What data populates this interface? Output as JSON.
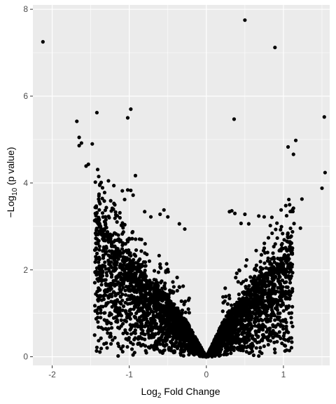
{
  "chart_data": {
    "type": "scatter",
    "title": "",
    "xlabel": {
      "prefix": "Log",
      "sub": "2",
      "suffix": " Fold Change"
    },
    "ylabel": {
      "prefix": "−Log",
      "sub": "10",
      "suffix": " (p value)"
    },
    "xlim": [
      -2.25,
      1.6
    ],
    "ylim": [
      -0.2,
      8.1
    ],
    "x_ticks": [
      -2,
      -1,
      0,
      1
    ],
    "x_tick_labels": [
      "-2",
      "-1",
      "0",
      "1"
    ],
    "y_ticks": [
      0,
      2,
      4,
      6,
      8
    ],
    "y_tick_labels": [
      "0",
      "2",
      "4",
      "6",
      "8"
    ],
    "grid": true,
    "panel_background": "#ebebeb",
    "grid_color": "#ffffff",
    "point_color": "#000000",
    "notable_points": [
      [
        -2.12,
        7.25
      ],
      [
        0.5,
        7.75
      ],
      [
        0.89,
        7.12
      ],
      [
        -0.98,
        5.7
      ],
      [
        -1.02,
        5.5
      ],
      [
        -1.42,
        5.62
      ],
      [
        -1.68,
        5.42
      ],
      [
        0.36,
        5.47
      ],
      [
        1.53,
        5.52
      ],
      [
        1.54,
        4.24
      ],
      [
        1.5,
        3.88
      ],
      [
        1.16,
        4.98
      ],
      [
        1.13,
        4.66
      ],
      [
        1.06,
        4.83
      ],
      [
        1.24,
        3.63
      ],
      [
        -1.65,
        5.05
      ],
      [
        -1.62,
        4.92
      ],
      [
        -1.65,
        4.86
      ],
      [
        -1.48,
        4.9
      ],
      [
        -1.56,
        4.39
      ],
      [
        -1.53,
        4.43
      ],
      [
        -1.41,
        4.31
      ],
      [
        -0.92,
        4.17
      ],
      [
        -1.44,
        4.02
      ],
      [
        -1.38,
        3.97
      ],
      [
        -1.27,
        4.05
      ],
      [
        -1.2,
        3.94
      ],
      [
        -1.09,
        3.82
      ],
      [
        -1.02,
        3.84
      ],
      [
        -0.98,
        3.83
      ],
      [
        -0.95,
        3.72
      ],
      [
        -1.32,
        3.78
      ],
      [
        -1.06,
        3.62
      ],
      [
        1.07,
        3.62
      ],
      [
        1.08,
        3.5
      ],
      [
        1.13,
        3.42
      ],
      [
        1.03,
        3.48
      ],
      [
        1.22,
        2.96
      ],
      [
        -0.55,
        3.38
      ],
      [
        -0.6,
        3.28
      ],
      [
        -0.5,
        3.22
      ],
      [
        -0.35,
        3.06
      ],
      [
        -0.28,
        2.94
      ],
      [
        -0.8,
        3.34
      ],
      [
        -0.72,
        3.22
      ],
      [
        0.3,
        3.34
      ],
      [
        0.37,
        3.3
      ],
      [
        0.33,
        3.36
      ],
      [
        0.5,
        3.28
      ],
      [
        0.68,
        3.24
      ],
      [
        0.75,
        3.22
      ],
      [
        0.85,
        3.21
      ],
      [
        0.97,
        3.38
      ],
      [
        0.83,
        3.02
      ],
      [
        0.55,
        3.06
      ],
      [
        0.45,
        3.07
      ]
    ],
    "envelope_description": "dense V-shaped cloud of thousands of points with minimum at x=0, y=0",
    "envelope_left": [
      [
        0,
        0
      ],
      [
        -0.25,
        0.8
      ],
      [
        -0.5,
        1.45
      ],
      [
        -0.75,
        1.95
      ],
      [
        -1.0,
        2.4
      ],
      [
        -1.25,
        3.0
      ],
      [
        -1.4,
        3.5
      ]
    ],
    "envelope_right": [
      [
        0,
        0
      ],
      [
        0.25,
        0.95
      ],
      [
        0.5,
        1.55
      ],
      [
        0.75,
        2.05
      ],
      [
        1.0,
        2.55
      ],
      [
        1.1,
        2.9
      ]
    ]
  },
  "axes": {
    "x_title_prefix": "Log",
    "x_title_sub": "2",
    "x_title_suffix": " Fold Change",
    "y_title_prefix": "−Log",
    "y_title_sub": "10",
    "y_title_suffix": " (p value)"
  }
}
